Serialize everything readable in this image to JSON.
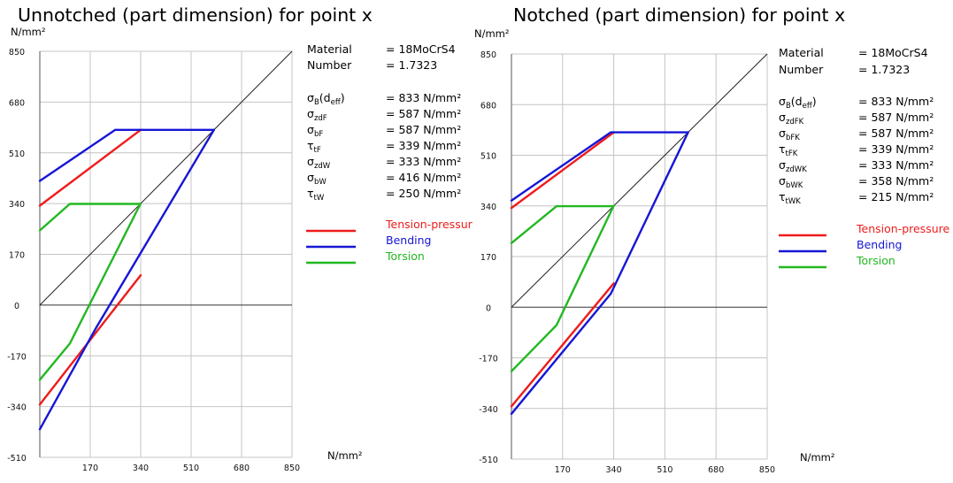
{
  "chart_data": [
    {
      "type": "line",
      "title": "Unnotched (part dimension) for point x",
      "y_unit": "N/mm²",
      "x_unit": "N/mm²",
      "xlim": [
        0,
        850
      ],
      "ylim": [
        -510,
        850
      ],
      "x_ticks": [
        "170",
        "340",
        "510",
        "680",
        "850"
      ],
      "y_ticks": [
        "850",
        "680",
        "510",
        "340",
        "170",
        "0",
        "-170",
        "-340",
        "-510"
      ],
      "x_tick_values": [
        170,
        340,
        510,
        680,
        850
      ],
      "y_tick_values": [
        850,
        680,
        510,
        340,
        170,
        0,
        -170,
        -340,
        -510
      ],
      "grid": true,
      "info": {
        "material_label": "Material",
        "material_value": "= 18MoCrS4",
        "number_label": "Number",
        "number_value": "= 1.7323",
        "params": [
          {
            "sym": "σ",
            "sub": "B",
            "extra": "(d",
            "sub2": "eff",
            "extra2": ")",
            "value": "= 833  N/mm²"
          },
          {
            "sym": "σ",
            "sub": "zdF",
            "value": "= 587  N/mm²"
          },
          {
            "sym": "σ",
            "sub": "bF",
            "value": "= 587  N/mm²"
          },
          {
            "sym": "τ",
            "sub": "tF",
            "value": "= 339  N/mm²"
          },
          {
            "sym": "σ",
            "sub": "zdW",
            "value": "= 333  N/mm²"
          },
          {
            "sym": "σ",
            "sub": "bW",
            "value": "= 416  N/mm²"
          },
          {
            "sym": "τ",
            "sub": "tW",
            "value": "= 250  N/mm²"
          }
        ]
      },
      "legend_placement": "right",
      "series": [
        {
          "name": "Tension-pressur",
          "color": "#ee1c1c",
          "upper": [
            [
              0,
              333
            ],
            [
              340,
              587
            ]
          ],
          "lower": [
            [
              0,
              -333
            ],
            [
              340,
              100
            ]
          ]
        },
        {
          "name": "Bending",
          "color": "#1616d6",
          "upper": [
            [
              0,
              416
            ],
            [
              254,
              587
            ],
            [
              587,
              587
            ]
          ],
          "lower": [
            [
              0,
              -416
            ],
            [
              189,
              -77
            ],
            [
              587,
              587
            ]
          ]
        },
        {
          "name": "Torsion",
          "color": "#22b822",
          "upper": [
            [
              0,
              250
            ],
            [
              101,
              339
            ],
            [
              339,
              339
            ]
          ],
          "lower": [
            [
              0,
              -250
            ],
            [
              101,
              -129
            ],
            [
              339,
              339
            ]
          ]
        }
      ],
      "reference_line": {
        "color": "#222222",
        "points": [
          [
            0,
            0
          ],
          [
            850,
            850
          ]
        ]
      }
    },
    {
      "type": "line",
      "title": "Notched (part dimension) for point x",
      "y_unit": "N/mm²",
      "x_unit": "N/mm²",
      "xlim": [
        0,
        850
      ],
      "ylim": [
        -510,
        850
      ],
      "x_ticks": [
        "170",
        "340",
        "510",
        "680",
        "850"
      ],
      "y_ticks": [
        "850",
        "680",
        "510",
        "340",
        "170",
        "0",
        "-170",
        "-340",
        "-510"
      ],
      "x_tick_values": [
        170,
        340,
        510,
        680,
        850
      ],
      "y_tick_values": [
        850,
        680,
        510,
        340,
        170,
        0,
        -170,
        -340,
        -510
      ],
      "grid": true,
      "info": {
        "material_label": "Material",
        "material_value": "= 18MoCrS4",
        "number_label": "Number",
        "number_value": "= 1.7323",
        "params": [
          {
            "sym": "σ",
            "sub": "B",
            "extra": "(d",
            "sub2": "eff",
            "extra2": ")",
            "value": "= 833  N/mm²"
          },
          {
            "sym": "σ",
            "sub": "zdFK",
            "value": "= 587  N/mm²"
          },
          {
            "sym": "σ",
            "sub": "bFK",
            "value": "= 587  N/mm²"
          },
          {
            "sym": "τ",
            "sub": "tFK",
            "value": "= 339  N/mm²"
          },
          {
            "sym": "σ",
            "sub": "zdWK",
            "value": "= 333  N/mm²"
          },
          {
            "sym": "σ",
            "sub": "bWK",
            "value": "= 358  N/mm²"
          },
          {
            "sym": "τ",
            "sub": "tWK",
            "value": "= 215  N/mm²"
          }
        ]
      },
      "legend_placement": "right",
      "series": [
        {
          "name": "Tension-pressure",
          "color": "#ee1c1c",
          "upper": [
            [
              0,
              333
            ],
            [
              340,
              587
            ]
          ],
          "lower": [
            [
              0,
              -333
            ],
            [
              340,
              80
            ]
          ]
        },
        {
          "name": "Bending",
          "color": "#1616d6",
          "upper": [
            [
              0,
              358
            ],
            [
              330,
              587
            ],
            [
              587,
              587
            ]
          ],
          "lower": [
            [
              0,
              -358
            ],
            [
              330,
              45
            ],
            [
              587,
              587
            ]
          ]
        },
        {
          "name": "Torsion",
          "color": "#22b822",
          "upper": [
            [
              0,
              215
            ],
            [
              150,
              339
            ],
            [
              339,
              339
            ]
          ],
          "lower": [
            [
              0,
              -215
            ],
            [
              150,
              -60
            ],
            [
              339,
              339
            ]
          ]
        }
      ],
      "reference_line": {
        "color": "#222222",
        "points": [
          [
            0,
            0
          ],
          [
            850,
            850
          ]
        ]
      }
    }
  ]
}
